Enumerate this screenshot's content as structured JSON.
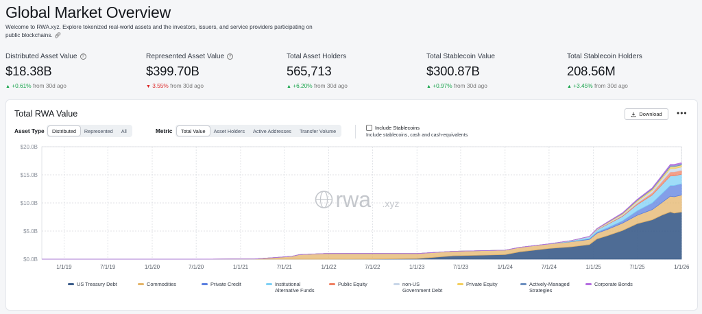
{
  "header": {
    "title": "Global Market Overview",
    "intro": "Welcome to RWA.xyz. Explore tokenized real-world assets and the investors, issuers, and service providers participating on public blockchains.",
    "link_icon": "link-icon"
  },
  "stats": [
    {
      "label": "Distributed Asset Value",
      "has_info": true,
      "value": "$18.38B",
      "direction": "up",
      "change": "+0.61%",
      "period": "from 30d ago"
    },
    {
      "label": "Represented Asset Value",
      "has_info": true,
      "value": "$399.70B",
      "direction": "down",
      "change": "3.55%",
      "period": "from 30d ago"
    },
    {
      "label": "Total Asset Holders",
      "has_info": false,
      "value": "565,713",
      "direction": "up",
      "change": "+6.20%",
      "period": "from 30d ago"
    },
    {
      "label": "Total Stablecoin Value",
      "has_info": false,
      "value": "$300.87B",
      "direction": "up",
      "change": "+0.97%",
      "period": "from 30d ago"
    },
    {
      "label": "Total Stablecoin Holders",
      "has_info": false,
      "value": "208.56M",
      "direction": "up",
      "change": "+3.45%",
      "period": "from 30d ago"
    }
  ],
  "card": {
    "title": "Total RWA Value",
    "download_label": "Download",
    "more_label": "•••",
    "asset_type_label": "Asset Type",
    "asset_type_options": [
      "Distributed",
      "Represented",
      "All"
    ],
    "asset_type_selected": "Distributed",
    "metric_label": "Metric",
    "metric_options": [
      "Total Value",
      "Asset Holders",
      "Active Addresses",
      "Transfer Volume"
    ],
    "metric_selected": "Total Value",
    "include_stablecoins_label": "Include Stablecoins",
    "include_stablecoins_checked": false,
    "include_stablecoins_sub": "Include stablecoins, cash and cash-equivalents",
    "watermark": "rwa",
    "watermark_suffix": ".xyz"
  },
  "colors": {
    "up": "#17a34a",
    "down": "#dc2626",
    "grid": "#d6d9de"
  },
  "chart_data": {
    "type": "area",
    "stacked": true,
    "title": "",
    "xlabel": "",
    "ylabel": "",
    "ylim": [
      0,
      20
    ],
    "y_ticks": [
      "$0.0B",
      "$5.0B",
      "$10.0B",
      "$15.0B",
      "$20.0B"
    ],
    "y_tick_values": [
      0,
      5,
      10,
      15,
      20
    ],
    "x_range": [
      "2018-10-01",
      "2025-12-31"
    ],
    "x_ticks": [
      "1/1/19",
      "7/1/19",
      "1/1/20",
      "7/1/20",
      "1/1/21",
      "7/1/21",
      "1/1/22",
      "7/1/22",
      "1/1/23",
      "7/1/23",
      "1/1/24",
      "7/1/24",
      "1/1/25",
      "7/1/25",
      "1/1/26"
    ],
    "x_tick_dates": [
      "2019-01-01",
      "2019-07-01",
      "2020-01-01",
      "2020-07-01",
      "2021-01-01",
      "2021-07-01",
      "2022-01-01",
      "2022-07-01",
      "2023-01-01",
      "2023-07-01",
      "2024-01-01",
      "2024-07-01",
      "2025-01-01",
      "2025-07-01",
      "2026-01-01"
    ],
    "grid": true,
    "legend_position": "bottom",
    "x": [
      "2018-10-01",
      "2019-06-01",
      "2020-06-01",
      "2021-03-01",
      "2021-08-01",
      "2021-09-01",
      "2021-12-15",
      "2022-06-01",
      "2023-01-01",
      "2023-06-01",
      "2024-01-01",
      "2024-03-01",
      "2024-07-01",
      "2024-10-01",
      "2024-12-15",
      "2025-01-15",
      "2025-03-01",
      "2025-05-01",
      "2025-07-01",
      "2025-09-01",
      "2025-10-15",
      "2025-11-15",
      "2025-12-01",
      "2025-12-31"
    ],
    "series": [
      {
        "name": "US Treasury Debt",
        "color": "#3b5c8a",
        "values": [
          0,
          0,
          0,
          0,
          0,
          0,
          0,
          0.02,
          0.1,
          0.6,
          0.8,
          1.3,
          1.9,
          2.2,
          2.6,
          3.6,
          4.2,
          5.1,
          6.3,
          7.0,
          7.9,
          8.4,
          8.2,
          8.4
        ]
      },
      {
        "name": "Commodities",
        "color": "#e4b469",
        "values": [
          0,
          0,
          0,
          0.04,
          0.5,
          0.8,
          1.0,
          1.0,
          0.9,
          0.8,
          0.8,
          0.8,
          0.8,
          0.9,
          0.9,
          1.0,
          1.1,
          1.3,
          1.5,
          1.8,
          2.3,
          2.8,
          2.9,
          3.0
        ]
      },
      {
        "name": "Private Credit",
        "color": "#5b7fe0",
        "values": [
          0,
          0,
          0,
          0,
          0,
          0,
          0,
          0,
          0,
          0,
          0,
          0,
          0,
          0.05,
          0.15,
          0.2,
          0.3,
          0.4,
          0.8,
          1.2,
          1.6,
          1.9,
          2.0,
          2.0
        ]
      },
      {
        "name": "Institutional Alternative Funds",
        "color": "#7fd0f5",
        "values": [
          0,
          0,
          0,
          0,
          0,
          0,
          0,
          0,
          0,
          0,
          0,
          0,
          0,
          0.1,
          0.3,
          0.4,
          0.6,
          0.8,
          1.1,
          1.4,
          1.6,
          1.7,
          1.7,
          1.7
        ]
      },
      {
        "name": "Public Equity",
        "color": "#f08062",
        "values": [
          0,
          0,
          0,
          0,
          0,
          0,
          0,
          0,
          0,
          0,
          0,
          0,
          0,
          0,
          0,
          0.05,
          0.1,
          0.15,
          0.25,
          0.4,
          0.6,
          0.7,
          0.7,
          0.7
        ]
      },
      {
        "name": "non-US Government Debt",
        "color": "#c8d6e8",
        "values": [
          0,
          0,
          0,
          0,
          0,
          0,
          0,
          0,
          0,
          0,
          0,
          0,
          0.02,
          0.05,
          0.07,
          0.1,
          0.15,
          0.2,
          0.3,
          0.4,
          0.5,
          0.6,
          0.6,
          0.6
        ]
      },
      {
        "name": "Private Equity",
        "color": "#f4cf5e",
        "values": [
          0,
          0,
          0,
          0,
          0,
          0,
          0,
          0,
          0,
          0,
          0,
          0,
          0,
          0,
          0.02,
          0.05,
          0.1,
          0.15,
          0.2,
          0.25,
          0.3,
          0.35,
          0.35,
          0.35
        ]
      },
      {
        "name": "Actively-Managed Strategies",
        "color": "#6c8fbf",
        "values": [
          0,
          0,
          0,
          0,
          0,
          0,
          0,
          0,
          0,
          0,
          0,
          0,
          0,
          0,
          0,
          0.02,
          0.05,
          0.08,
          0.12,
          0.15,
          0.2,
          0.25,
          0.25,
          0.25
        ]
      },
      {
        "name": "Corporate Bonds",
        "color": "#b46de0",
        "values": [
          0,
          0,
          0,
          0,
          0,
          0,
          0,
          0,
          0,
          0,
          0,
          0,
          0,
          0,
          0.02,
          0.03,
          0.05,
          0.06,
          0.08,
          0.1,
          0.12,
          0.15,
          0.15,
          0.15
        ]
      }
    ],
    "legend": [
      {
        "label": "US Treasury Debt"
      },
      {
        "label": "Commodities"
      },
      {
        "label": "Private Credit"
      },
      {
        "label": "Institutional Alternative Funds"
      },
      {
        "label": "Public Equity"
      },
      {
        "label": "non-US Government Debt"
      },
      {
        "label": "Private Equity"
      },
      {
        "label": "Actively-Managed Strategies"
      },
      {
        "label": "Corporate Bonds"
      }
    ]
  }
}
